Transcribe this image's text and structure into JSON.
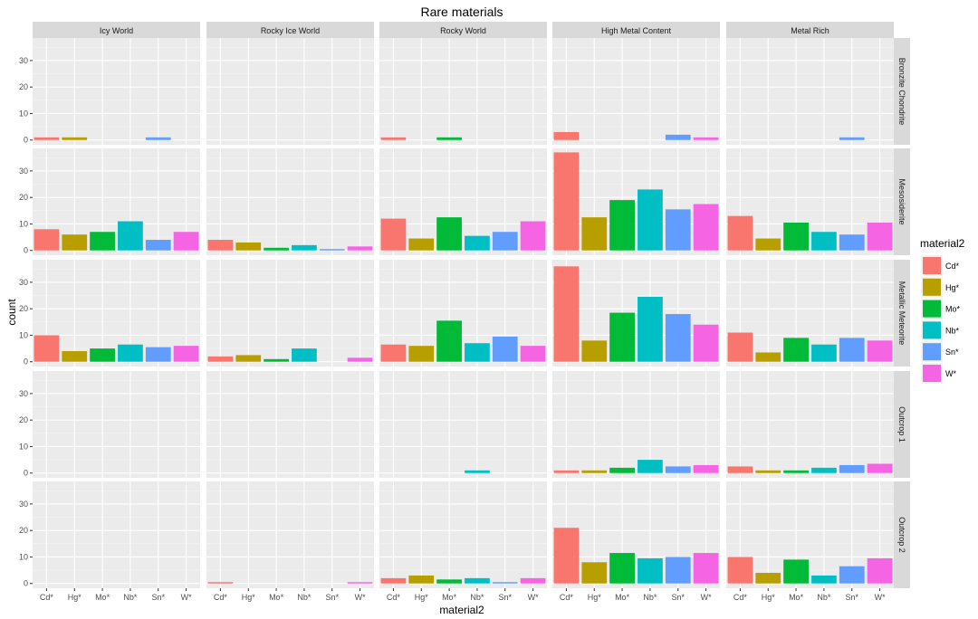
{
  "chart_data": {
    "type": "bar",
    "title": "Rare materials",
    "xlabel": "material2",
    "ylabel": "count",
    "legend_title": "material2",
    "legend_position": "right",
    "categories": [
      "Cd*",
      "Hg*",
      "Mo*",
      "Nb*",
      "Sn*",
      "W*"
    ],
    "colors": [
      "#F8766D",
      "#B79F00",
      "#00BA38",
      "#00BFC4",
      "#619CFF",
      "#F564E3"
    ],
    "facet_columns": [
      "Icy World",
      "Rocky Ice World",
      "Rocky World",
      "High Metal Content",
      "Metal Rich"
    ],
    "facet_rows": [
      "Bronzite Chondrite",
      "Mesosiderite",
      "Metallic Meteorite",
      "Outcrop 1",
      "Outcrop 2"
    ],
    "yticks": [
      0,
      10,
      20,
      30
    ],
    "ylim": [
      -1.8,
      38.5
    ],
    "grid": true,
    "values": [
      [
        [
          1,
          1,
          0,
          0,
          1,
          0
        ],
        [
          0,
          0,
          0,
          0,
          0,
          0
        ],
        [
          1,
          0,
          1,
          0,
          0,
          0
        ],
        [
          3,
          0,
          0,
          0,
          2,
          1
        ],
        [
          0,
          0,
          0,
          0,
          1,
          0
        ]
      ],
      [
        [
          8,
          6,
          7,
          11,
          4,
          7
        ],
        [
          4,
          3,
          1,
          2,
          0.5,
          1.5
        ],
        [
          12,
          4.5,
          12.5,
          5.5,
          7,
          11
        ],
        [
          37,
          12.5,
          19,
          23,
          15.5,
          17.5
        ],
        [
          13,
          4.5,
          10.5,
          7,
          6,
          10.5
        ]
      ],
      [
        [
          10,
          4,
          5,
          6.5,
          5.5,
          6
        ],
        [
          2,
          2.5,
          1,
          5,
          0,
          1.5
        ],
        [
          6.5,
          6,
          15.5,
          7,
          9.5,
          6
        ],
        [
          36,
          8,
          18.5,
          24.5,
          18,
          14
        ],
        [
          11,
          3.5,
          9,
          6.5,
          9,
          8
        ]
      ],
      [
        [
          0,
          0,
          0,
          0,
          0,
          0
        ],
        [
          0,
          0,
          0,
          0,
          0,
          0
        ],
        [
          0,
          0,
          0,
          1,
          0,
          0
        ],
        [
          1,
          1,
          2,
          5,
          2.5,
          3
        ],
        [
          2.5,
          1,
          1,
          2,
          3,
          3.5
        ]
      ],
      [
        [
          0,
          0,
          0,
          0,
          0,
          0
        ],
        [
          0.5,
          0,
          0,
          0,
          0,
          0.5
        ],
        [
          2,
          3,
          1.5,
          2,
          0.5,
          2
        ],
        [
          21,
          8,
          11.5,
          9.5,
          10,
          11.5
        ],
        [
          10,
          4,
          9,
          3,
          6.5,
          9.5
        ]
      ]
    ]
  }
}
